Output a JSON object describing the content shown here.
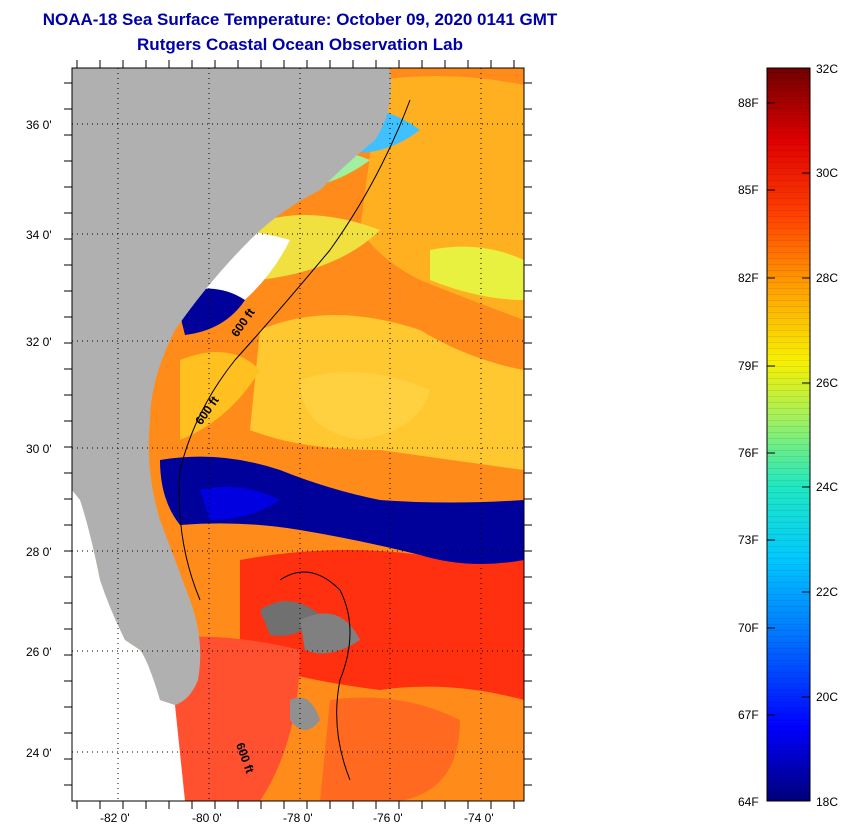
{
  "title": "NOAA-18 Sea Surface Temperature:  October 09, 2020 0141 GMT",
  "subtitle": "Rutgers Coastal Ocean Observation Lab",
  "map": {
    "lat_labels": [
      {
        "lat": 36,
        "label": "36 0'"
      },
      {
        "lat": 34,
        "label": "34 0'"
      },
      {
        "lat": 32,
        "label": "32 0'"
      },
      {
        "lat": 30,
        "label": "30 0'"
      },
      {
        "lat": 28,
        "label": "28 0'"
      },
      {
        "lat": 26,
        "label": "26 0'"
      },
      {
        "lat": 24,
        "label": "24 0'"
      }
    ],
    "lon_labels": [
      {
        "lon": -82,
        "label": "-82 0'"
      },
      {
        "lon": -80,
        "label": "-80 0'"
      },
      {
        "lon": -78,
        "label": "-78 0'"
      },
      {
        "lon": -76,
        "label": "-76 0'"
      },
      {
        "lon": -74,
        "label": "-74 0'"
      }
    ],
    "contour_labels": [
      "600 ft",
      "600 ft",
      "600 ft"
    ]
  },
  "colorbar": {
    "fahrenheit": [
      "88F",
      "85F",
      "82F",
      "79F",
      "76F",
      "73F",
      "70F",
      "67F",
      "64F"
    ],
    "celsius": [
      "32C",
      "30C",
      "28C",
      "26C",
      "24C",
      "22C",
      "20C",
      "18C"
    ],
    "range_c": [
      18,
      32
    ],
    "colors": [
      "#00007a",
      "#0000ff",
      "#0070ff",
      "#00c8ff",
      "#20e8c0",
      "#a0f060",
      "#f8f000",
      "#ffa000",
      "#ff4000",
      "#e00000",
      "#700000"
    ]
  }
}
